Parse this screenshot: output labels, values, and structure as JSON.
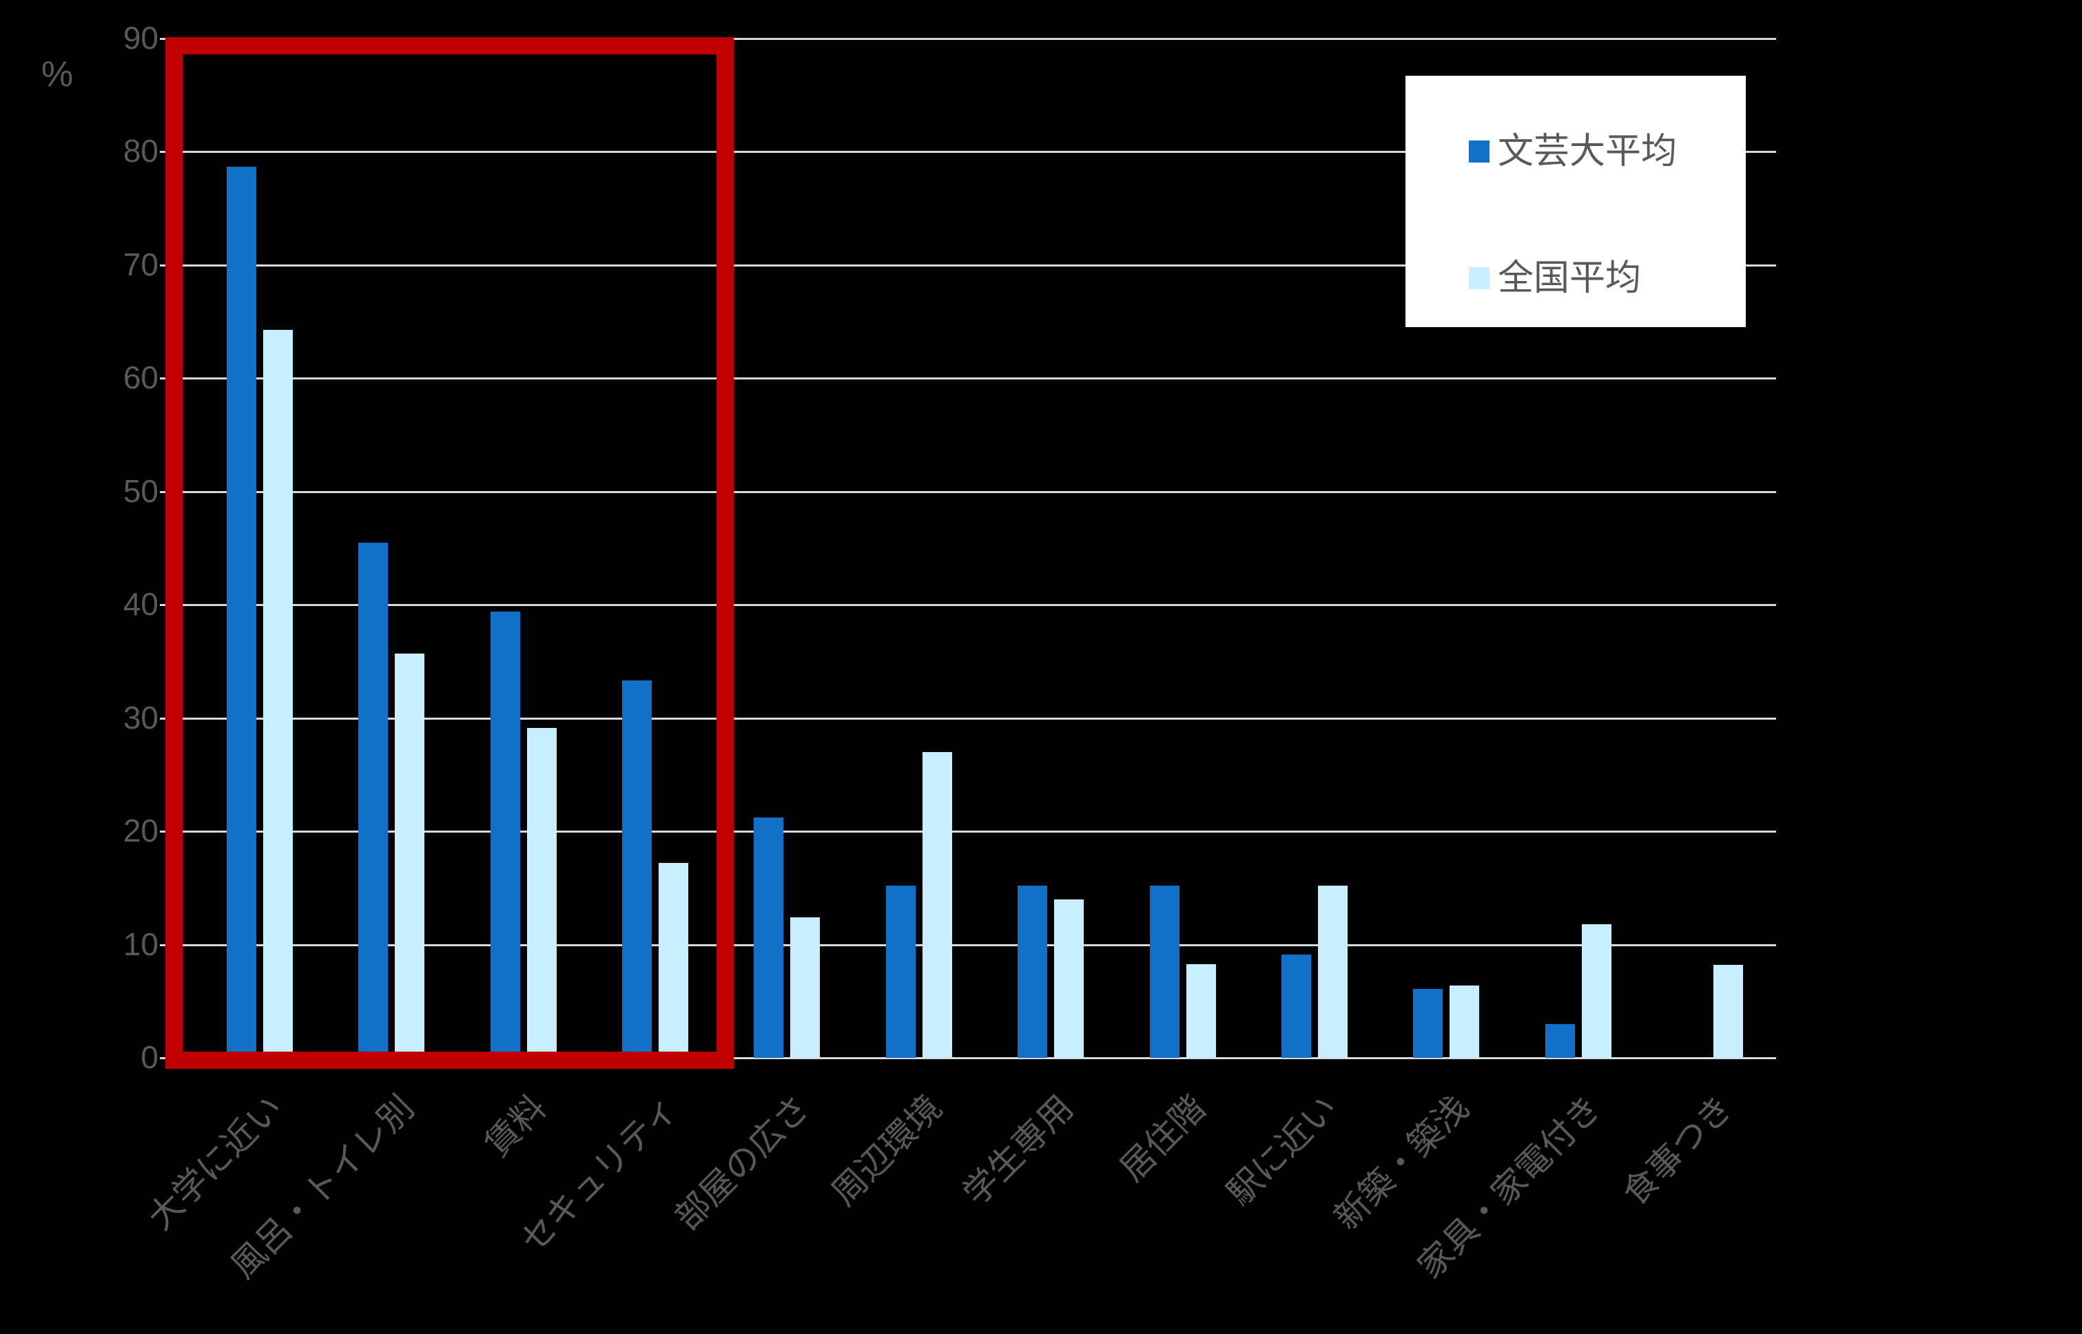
{
  "chart_data": {
    "type": "bar",
    "title": "",
    "xlabel": "",
    "ylabel": "%",
    "ylim": [
      0,
      90
    ],
    "yticks": [
      0,
      10,
      20,
      30,
      40,
      50,
      60,
      70,
      80,
      90
    ],
    "grid": true,
    "legend_position": "top-right (inside plot)",
    "categories": [
      "大学に近い",
      "風呂・トイレ別",
      "賃料",
      "セキュリティ",
      "部屋の広さ",
      "周辺環境",
      "学生専用",
      "居住階",
      "駅に近い",
      "新築・築浅",
      "家具・家電付き",
      "食事つき"
    ],
    "series": [
      {
        "name": "文芸大平均",
        "color": "#1170c8",
        "values": [
          78.7,
          45.5,
          39.4,
          33.3,
          21.2,
          15.2,
          15.2,
          15.2,
          9.1,
          6.1,
          3.0,
          0
        ]
      },
      {
        "name": "全国平均",
        "color": "#c7efff",
        "values": [
          64.3,
          35.7,
          29.1,
          17.2,
          12.4,
          27.0,
          14.0,
          8.3,
          15.2,
          6.4,
          11.8,
          8.2
        ]
      }
    ],
    "annotations": [
      {
        "type": "highlight-box",
        "color": "#c00000",
        "covers_categories": [
          "大学に近い",
          "風呂・トイレ別",
          "賃料",
          "セキュリティ"
        ]
      }
    ]
  },
  "axis": {
    "unit_label": "%"
  },
  "legend": {
    "items": [
      {
        "label": "文芸大平均",
        "color": "#1170c8"
      },
      {
        "label": "全国平均",
        "color": "#c7efff"
      }
    ]
  },
  "colors": {
    "background": "#000000",
    "gridline": "#d9d9d9",
    "text": "#595959",
    "highlight": "#c00000"
  }
}
